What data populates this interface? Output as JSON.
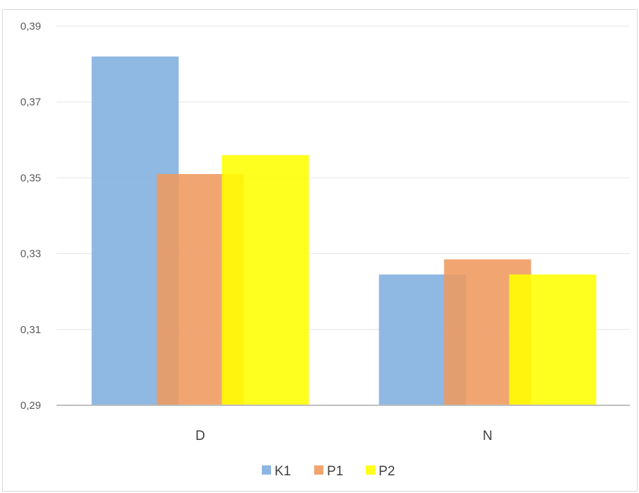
{
  "chart_data": {
    "type": "bar",
    "categories": [
      "D",
      "N"
    ],
    "series": [
      {
        "name": "K1",
        "color": "#7FAEDE",
        "values": [
          0.382,
          0.3245
        ]
      },
      {
        "name": "P1",
        "color": "#EF9A5E",
        "values": [
          0.351,
          0.3285
        ]
      },
      {
        "name": "P2",
        "color": "#FFFF00",
        "values": [
          0.356,
          0.3245
        ]
      }
    ],
    "ylim": [
      0.29,
      0.39
    ],
    "yticks": [
      {
        "value": 0.29,
        "label": "0,29"
      },
      {
        "value": 0.31,
        "label": "0,31"
      },
      {
        "value": 0.33,
        "label": "0,33"
      },
      {
        "value": 0.35,
        "label": "0,35"
      },
      {
        "value": 0.37,
        "label": "0,37"
      },
      {
        "value": 0.39,
        "label": "0,39"
      }
    ],
    "grid": true,
    "legend": "bottom",
    "overlap": true
  }
}
